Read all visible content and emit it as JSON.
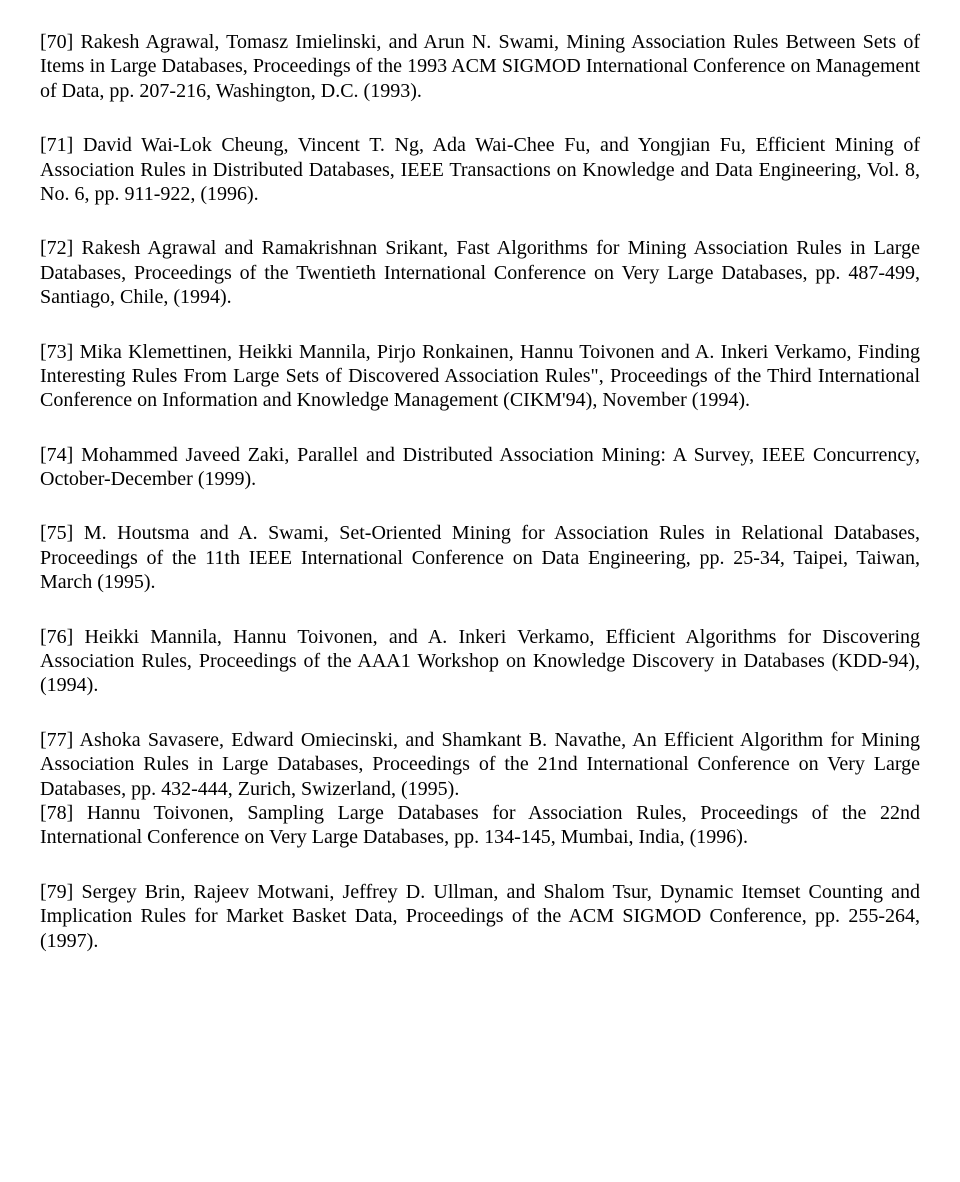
{
  "references": [
    "[70] Rakesh Agrawal, Tomasz Imielinski, and Arun N. Swami, Mining Association Rules Between Sets of Items in Large Databases, Proceedings of the 1993 ACM SIGMOD International Conference on Management of Data, pp. 207-216, Washington, D.C. (1993).",
    "[71] David Wai-Lok Cheung, Vincent T. Ng, Ada Wai-Chee Fu, and Yongjian Fu, Efficient Mining of Association Rules in Distributed Databases, IEEE Transactions on Knowledge and Data Engineering, Vol. 8, No. 6, pp. 911-922, (1996).",
    "[72] Rakesh Agrawal and Ramakrishnan Srikant, Fast Algorithms for Mining Association Rules in Large Databases, Proceedings of the Twentieth International Conference on Very Large Databases, pp. 487-499, Santiago, Chile, (1994).",
    "[73] Mika Klemettinen, Heikki Mannila, Pirjo Ronkainen, Hannu Toivonen and A. Inkeri Verkamo, Finding Interesting Rules From Large Sets of Discovered Association Rules\", Proceedings of the Third International Conference on Information and Knowledge Management (CIKM'94), November (1994).",
    "[74] Mohammed Javeed Zaki, Parallel and Distributed Association Mining: A Survey, IEEE Concurrency, October-December (1999).",
    "[75] M. Houtsma and A. Swami, Set-Oriented Mining for Association Rules in Relational Databases, Proceedings of the 11th IEEE International Conference on Data Engineering, pp. 25-34, Taipei, Taiwan, March (1995).",
    "[76] Heikki Mannila, Hannu Toivonen, and A. Inkeri Verkamo, Efficient Algorithms for Discovering Association Rules, Proceedings of the AAA1 Workshop on Knowledge Discovery in Databases (KDD-94), (1994).",
    "[77] Ashoka Savasere, Edward Omiecinski, and Shamkant B. Navathe, An Efficient Algorithm for Mining Association Rules in Large Databases, Proceedings of the 21nd International Conference on Very Large Databases, pp. 432-444, Zurich, Swizerland, (1995).",
    "[78] Hannu Toivonen, Sampling Large Databases for Association Rules, Proceedings of the 22nd International Conference on Very Large Databases, pp. 134-145, Mumbai, India, (1996).",
    "[79] Sergey Brin, Rajeev Motwani, Jeffrey D. Ullman, and Shalom Tsur, Dynamic Itemset Counting and Implication Rules for Market Basket Data, Proceedings of the ACM SIGMOD Conference, pp. 255-264, (1997)."
  ]
}
